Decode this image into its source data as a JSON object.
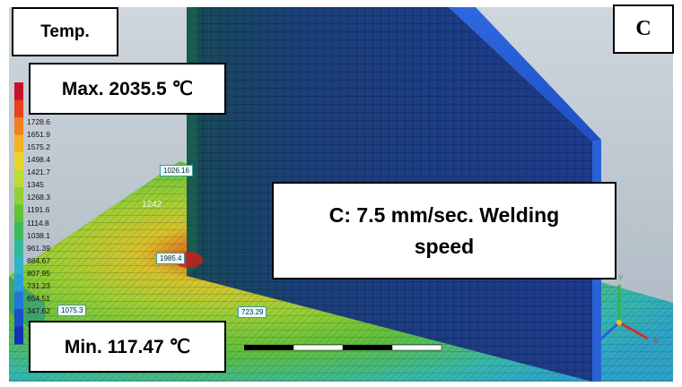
{
  "labels": {
    "temp": "Temp.",
    "max": "Max. 2035.5 ℃",
    "min": "Min. 117.47 ℃",
    "panel": "C",
    "speed_line1": "C: 7.5 mm/sec. Welding",
    "speed_line2": "speed"
  },
  "legend": {
    "colors": [
      "#c8102e",
      "#e8401c",
      "#f0801f",
      "#f4b21f",
      "#e8d62a",
      "#bedc2f",
      "#8fd136",
      "#5fc43a",
      "#3cba5a",
      "#2fb99a",
      "#2fb5c9",
      "#2a9fd8",
      "#2276d6",
      "#1b4fc9",
      "#1530b8"
    ],
    "values": [
      "1728.6",
      "1651.9",
      "1575.2",
      "1498.4",
      "1421.7",
      "1345",
      "1268.3",
      "1191.6",
      "1114.8",
      "1038.1",
      "961.39",
      "884.67",
      "807.95",
      "731.23",
      "654.51",
      "347.62",
      "117.47"
    ]
  },
  "probes": {
    "p1": "1026.16",
    "p2": "1985.4",
    "p3": "1075.3",
    "p4": "723.29",
    "mesh_value": "1242"
  },
  "axis": {
    "y": "Y",
    "x": "X"
  },
  "colors": {
    "wall": "#1f3f8a",
    "wall_edge": "#2a62d6",
    "plate_hot": "#c91e1a",
    "plate_warm": "#d9c22c",
    "plate_mid": "#7fca36",
    "plate_cool": "#35b7b0"
  }
}
